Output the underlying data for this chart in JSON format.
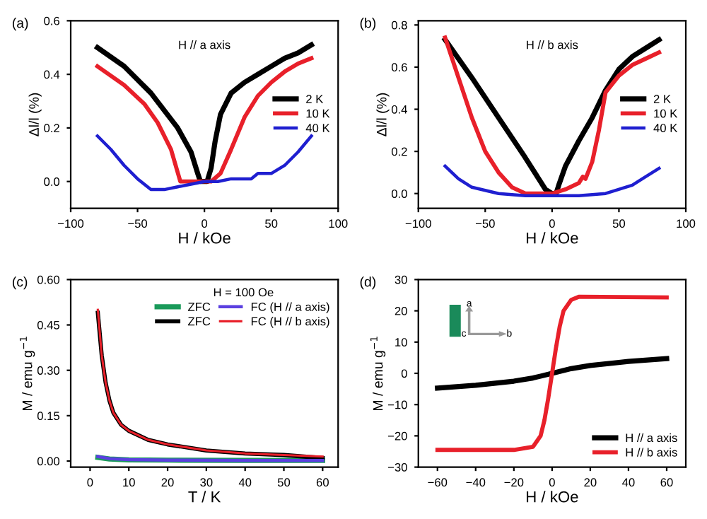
{
  "chart_data": [
    {
      "type": "line",
      "title": "(a)",
      "xlabel": "H / kOe",
      "ylabel": "Δl/l (%)",
      "annotations": [
        "H // a axis"
      ],
      "xlim": [
        -100,
        100
      ],
      "xticks": [
        -100,
        -50,
        0,
        50,
        100
      ],
      "ylim": [
        -0.1,
        0.6
      ],
      "yticks": [
        {
          "value": 0,
          "label": "0.0"
        },
        0.2,
        0.4,
        0.6
      ],
      "legend": "right",
      "grid": false,
      "series": [
        {
          "name": "2 K",
          "color": "#000000",
          "x": [
            -80,
            -60,
            -40,
            -20,
            -10,
            -5,
            -3,
            2,
            5,
            8,
            12,
            20,
            30,
            40,
            50,
            60,
            70,
            80
          ],
          "values": [
            0.5,
            0.43,
            0.33,
            0.2,
            0.11,
            0.03,
            0.0,
            0.0,
            0.05,
            0.15,
            0.25,
            0.33,
            0.37,
            0.4,
            0.43,
            0.46,
            0.48,
            0.51
          ]
        },
        {
          "name": "10 K",
          "color": "#e8202a",
          "x": [
            -80,
            -60,
            -45,
            -35,
            -25,
            -18,
            0,
            5,
            12,
            20,
            30,
            40,
            50,
            60,
            70,
            80
          ],
          "values": [
            0.43,
            0.36,
            0.29,
            0.22,
            0.12,
            0.0,
            0.0,
            0.0,
            0.03,
            0.12,
            0.24,
            0.32,
            0.37,
            0.41,
            0.44,
            0.46
          ]
        },
        {
          "name": "40 K",
          "color": "#1f1fd0",
          "x": [
            -80,
            -70,
            -60,
            -50,
            -40,
            -30,
            -20,
            -10,
            0,
            10,
            20,
            35,
            40,
            50,
            60,
            70,
            80
          ],
          "values": [
            0.17,
            0.12,
            0.06,
            0.01,
            -0.03,
            -0.03,
            -0.02,
            -0.01,
            0.0,
            0.0,
            0.01,
            0.01,
            0.03,
            0.03,
            0.06,
            0.11,
            0.17
          ]
        }
      ]
    },
    {
      "type": "line",
      "title": "(b)",
      "xlabel": "H / kOe",
      "ylabel": "Δl/l (%)",
      "annotations": [
        "H // b axis"
      ],
      "xlim": [
        -100,
        100
      ],
      "xticks": [
        -100,
        -50,
        0,
        50,
        100
      ],
      "ylim": [
        -0.07,
        0.82
      ],
      "yticks": [
        {
          "value": 0,
          "label": "0.0"
        },
        0.2,
        0.4,
        0.6,
        0.8
      ],
      "legend": "right",
      "grid": false,
      "series": [
        {
          "name": "2 K",
          "color": "#000000",
          "x": [
            -80,
            -60,
            -40,
            -20,
            -5,
            0,
            3,
            5,
            10,
            20,
            30,
            40,
            50,
            60,
            70,
            80
          ],
          "values": [
            0.73,
            0.55,
            0.36,
            0.17,
            0.02,
            0.0,
            0.0,
            0.04,
            0.13,
            0.25,
            0.36,
            0.49,
            0.59,
            0.65,
            0.69,
            0.73
          ]
        },
        {
          "name": "10 K",
          "color": "#e8202a",
          "x": [
            -80,
            -70,
            -60,
            -50,
            -40,
            -30,
            -20,
            0,
            10,
            20,
            23,
            25,
            30,
            35,
            40,
            50,
            60,
            70,
            80
          ],
          "values": [
            0.74,
            0.55,
            0.36,
            0.2,
            0.1,
            0.03,
            0.0,
            0.0,
            0.02,
            0.05,
            0.08,
            0.07,
            0.15,
            0.3,
            0.48,
            0.56,
            0.61,
            0.64,
            0.67
          ]
        },
        {
          "name": "40 K",
          "color": "#1f1fd0",
          "x": [
            -80,
            -70,
            -60,
            -40,
            -20,
            0,
            20,
            40,
            60,
            70,
            80
          ],
          "values": [
            0.13,
            0.07,
            0.03,
            0.0,
            -0.01,
            -0.01,
            -0.01,
            0.0,
            0.04,
            0.08,
            0.12
          ]
        }
      ]
    },
    {
      "type": "line",
      "title": "(c)",
      "xlabel": "T / K",
      "ylabel": "M / emu g$^{−1}$",
      "legend_title": "H = 100 Oe",
      "xlim": [
        -5,
        64
      ],
      "xticks": [
        0,
        10,
        20,
        30,
        40,
        50,
        60
      ],
      "ylim": [
        -0.02,
        0.6
      ],
      "yticks": [
        {
          "value": 0,
          "label": "0.00"
        },
        0.15,
        {
          "value": 0.3,
          "label": "0.30"
        },
        0.45,
        {
          "value": 0.6,
          "label": "0.60"
        }
      ],
      "legend": "top right",
      "grid": false,
      "series": [
        {
          "name": "ZFC",
          "color": "#1a9a5a",
          "x": [
            2,
            5,
            10,
            20,
            40,
            60
          ],
          "values": [
            0.012,
            0.007,
            0.004,
            0.003,
            0.002,
            0.002
          ]
        },
        {
          "name": "ZFC",
          "color": "#000000",
          "x": [
            2,
            3,
            4,
            5,
            6,
            8,
            10,
            15,
            20,
            30,
            40,
            50,
            60
          ],
          "values": [
            0.49,
            0.35,
            0.26,
            0.2,
            0.16,
            0.12,
            0.1,
            0.07,
            0.055,
            0.035,
            0.025,
            0.02,
            0.01
          ]
        },
        {
          "name": "FC (H // a axis)",
          "color": "#5a3fe0",
          "x": [
            2,
            5,
            10,
            20,
            40,
            60
          ],
          "values": [
            0.015,
            0.008,
            0.005,
            0.003,
            0.002,
            0.002
          ]
        },
        {
          "name": "FC (H // b axis)",
          "color": "#e8202a",
          "x": [
            2,
            3,
            4,
            5,
            6,
            8,
            10,
            15,
            20,
            30,
            40,
            50,
            60
          ],
          "values": [
            0.5,
            0.35,
            0.26,
            0.2,
            0.16,
            0.12,
            0.1,
            0.07,
            0.055,
            0.035,
            0.025,
            0.02,
            0.015
          ]
        }
      ]
    },
    {
      "type": "line",
      "title": "(d)",
      "xlabel": "H / kOe",
      "ylabel": "M / emu g$^{−1}$",
      "annotations": [
        "a",
        "b",
        "c"
      ],
      "xlim": [
        -70,
        70
      ],
      "xticks": [
        -60,
        -40,
        -20,
        0,
        20,
        40,
        60
      ],
      "ylim": [
        -30,
        30
      ],
      "yticks": [
        -30,
        -20,
        -10,
        0,
        10,
        20,
        30
      ],
      "legend": "bottom right",
      "grid": false,
      "series": [
        {
          "name": "H // a axis",
          "color": "#000000",
          "x": [
            -60,
            -40,
            -20,
            -10,
            0,
            10,
            20,
            40,
            60
          ],
          "values": [
            -4.7,
            -3.8,
            -2.5,
            -1.5,
            0,
            1.5,
            2.5,
            3.8,
            4.7
          ]
        },
        {
          "name": "H // b axis",
          "color": "#e8202a",
          "x": [
            -60,
            -20,
            -10,
            -6,
            -4,
            -2,
            0,
            2,
            4,
            6,
            10,
            14,
            60
          ],
          "values": [
            -24.5,
            -24.5,
            -23.5,
            -20,
            -15,
            -8,
            0,
            8,
            15,
            20,
            23.5,
            24.5,
            24.3
          ]
        }
      ]
    }
  ]
}
